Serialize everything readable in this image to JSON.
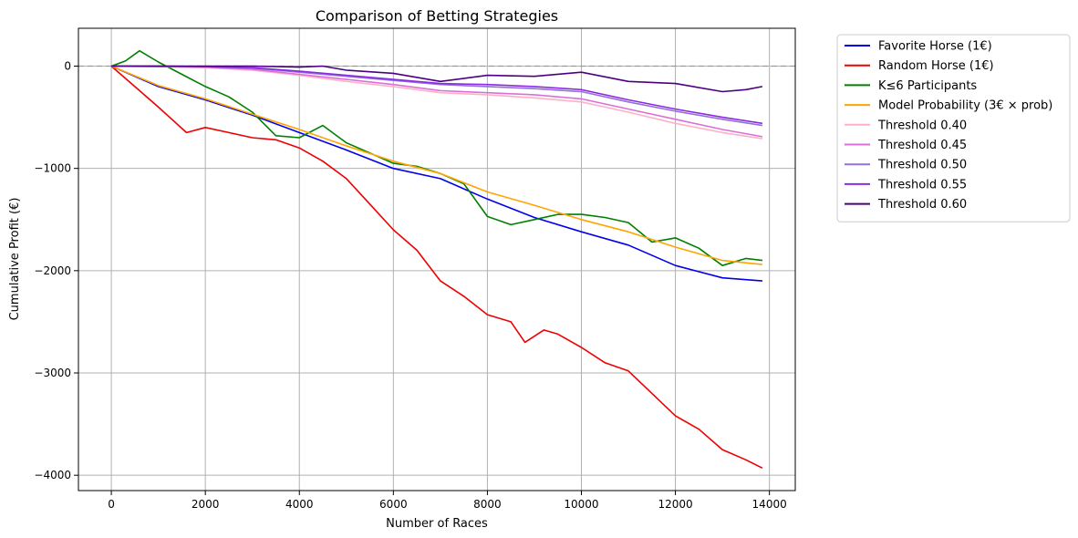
{
  "chart_data": {
    "type": "line",
    "title": "Comparison of Betting Strategies",
    "xlabel": "Number of Races",
    "ylabel": "Cumulative Profit (€)",
    "xlim": [
      -700,
      14550
    ],
    "ylim": [
      -4150,
      370
    ],
    "xticks": [
      0,
      2000,
      4000,
      6000,
      8000,
      10000,
      12000,
      14000
    ],
    "xtick_labels": [
      "0",
      "2000",
      "4000",
      "6000",
      "8000",
      "10000",
      "12000",
      "14000"
    ],
    "yticks": [
      0,
      -1000,
      -2000,
      -3000,
      -4000
    ],
    "ytick_labels": [
      "0",
      "−1000",
      "−2000",
      "−3000",
      "−4000"
    ],
    "grid": true,
    "reference_line": {
      "y": 0,
      "style": "dashed",
      "color": "#999999"
    },
    "legend_position": "outside-right",
    "series": [
      {
        "name": "Favorite Horse (1€)",
        "color": "#0000ee",
        "x": [
          0,
          1000,
          2000,
          3000,
          4000,
          5000,
          6000,
          7000,
          8000,
          9000,
          10000,
          11000,
          12000,
          13000,
          13850
        ],
        "y": [
          0,
          -200,
          -330,
          -480,
          -650,
          -820,
          -1000,
          -1100,
          -1300,
          -1480,
          -1620,
          -1750,
          -1950,
          -2070,
          -2100
        ]
      },
      {
        "name": "Random Horse (1€)",
        "color": "#ee0000",
        "x": [
          0,
          500,
          1000,
          1600,
          2000,
          2500,
          3000,
          3500,
          4000,
          4500,
          5000,
          5500,
          6000,
          6500,
          7000,
          7500,
          8000,
          8500,
          8800,
          9200,
          9500,
          10000,
          10500,
          11000,
          11500,
          12000,
          12500,
          13000,
          13500,
          13850
        ],
        "y": [
          0,
          -200,
          -400,
          -650,
          -600,
          -650,
          -700,
          -720,
          -800,
          -930,
          -1100,
          -1350,
          -1600,
          -1800,
          -2100,
          -2250,
          -2430,
          -2500,
          -2700,
          -2580,
          -2620,
          -2750,
          -2900,
          -2980,
          -3200,
          -3420,
          -3550,
          -3750,
          -3850,
          -3930
        ]
      },
      {
        "name": "K≤6 Participants",
        "color": "#008000",
        "x": [
          0,
          300,
          600,
          1000,
          1500,
          2000,
          2500,
          3000,
          3500,
          4000,
          4500,
          5000,
          5500,
          6000,
          6500,
          7000,
          7500,
          8000,
          8500,
          9000,
          9500,
          10000,
          10500,
          11000,
          11500,
          12000,
          12500,
          13000,
          13500,
          13850
        ],
        "y": [
          0,
          50,
          150,
          40,
          -80,
          -200,
          -300,
          -450,
          -680,
          -700,
          -580,
          -750,
          -850,
          -950,
          -980,
          -1050,
          -1150,
          -1470,
          -1550,
          -1500,
          -1450,
          -1450,
          -1480,
          -1530,
          -1720,
          -1680,
          -1780,
          -1950,
          -1880,
          -1900
        ]
      },
      {
        "name": "Model Probability (3€ × prob)",
        "color": "#ffa500",
        "x": [
          0,
          1000,
          2000,
          3000,
          4000,
          5000,
          6000,
          7000,
          8000,
          9000,
          10000,
          11000,
          12000,
          13000,
          13850
        ],
        "y": [
          0,
          -190,
          -320,
          -470,
          -620,
          -780,
          -930,
          -1050,
          -1230,
          -1360,
          -1500,
          -1620,
          -1770,
          -1900,
          -1940
        ]
      },
      {
        "name": "Threshold 0.40",
        "color": "#ffb0c8",
        "x": [
          0,
          1000,
          2000,
          3000,
          4000,
          5000,
          6000,
          7000,
          8000,
          9000,
          10000,
          11000,
          12000,
          13000,
          13850
        ],
        "y": [
          0,
          -5,
          -15,
          -40,
          -90,
          -150,
          -200,
          -260,
          -280,
          -310,
          -350,
          -450,
          -560,
          -650,
          -710
        ]
      },
      {
        "name": "Threshold 0.45",
        "color": "#da70d6",
        "x": [
          0,
          1000,
          2000,
          3000,
          4000,
          5000,
          6000,
          7000,
          8000,
          9000,
          10000,
          11000,
          12000,
          13000,
          13850
        ],
        "y": [
          0,
          -5,
          -10,
          -30,
          -80,
          -130,
          -180,
          -240,
          -260,
          -280,
          -320,
          -420,
          -520,
          -620,
          -690
        ]
      },
      {
        "name": "Threshold 0.50",
        "color": "#9370db",
        "x": [
          0,
          1000,
          2000,
          3000,
          4000,
          5000,
          6000,
          7000,
          8000,
          9000,
          10000,
          11000,
          12000,
          13000,
          13850
        ],
        "y": [
          0,
          0,
          -5,
          -20,
          -60,
          -100,
          -140,
          -180,
          -200,
          -220,
          -250,
          -350,
          -440,
          -520,
          -580
        ]
      },
      {
        "name": "Threshold 0.55",
        "color": "#8a2be2",
        "x": [
          0,
          1000,
          2000,
          3000,
          4000,
          5000,
          6000,
          7000,
          8000,
          9000,
          10000,
          11000,
          12000,
          13000,
          13850
        ],
        "y": [
          0,
          0,
          -5,
          -15,
          -50,
          -90,
          -130,
          -170,
          -180,
          -200,
          -230,
          -330,
          -420,
          -500,
          -560
        ]
      },
      {
        "name": "Threshold 0.60",
        "color": "#4b0082",
        "x": [
          0,
          1000,
          2000,
          3000,
          4000,
          4500,
          5000,
          6000,
          7000,
          8000,
          9000,
          10000,
          11000,
          12000,
          13000,
          13500,
          13850
        ],
        "y": [
          0,
          0,
          0,
          0,
          -10,
          0,
          -40,
          -70,
          -150,
          -90,
          -100,
          -60,
          -150,
          -170,
          -250,
          -230,
          -200
        ]
      }
    ]
  }
}
